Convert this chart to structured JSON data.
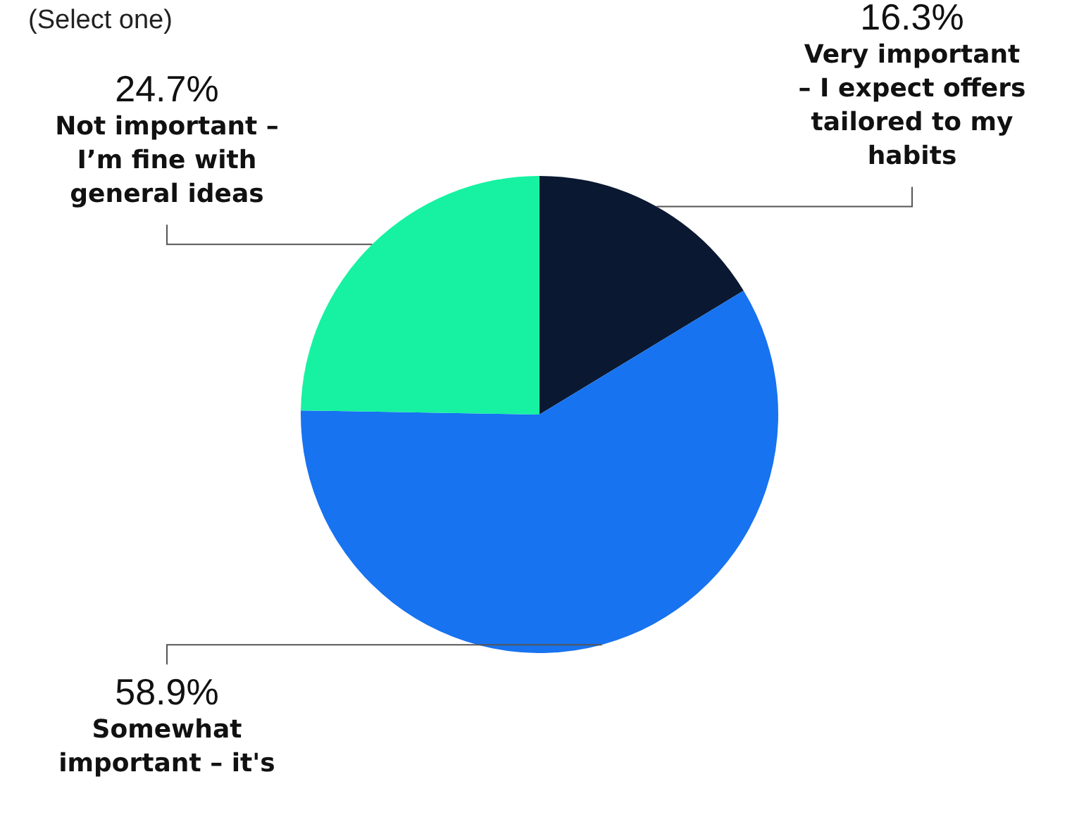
{
  "chart_data": {
    "type": "pie",
    "subtitle": "(Select one)",
    "categories": [
      "Very important – I expect offers tailored to my habits",
      "Somewhat important – it's",
      "Not important – I’m fine with general ideas"
    ],
    "values": [
      16.3,
      58.9,
      24.7
    ],
    "value_labels": [
      "16.3%",
      "58.9%",
      "24.7%"
    ],
    "colors": [
      "#0a1931",
      "#1773f0",
      "#16f2a2"
    ],
    "legend": false
  }
}
